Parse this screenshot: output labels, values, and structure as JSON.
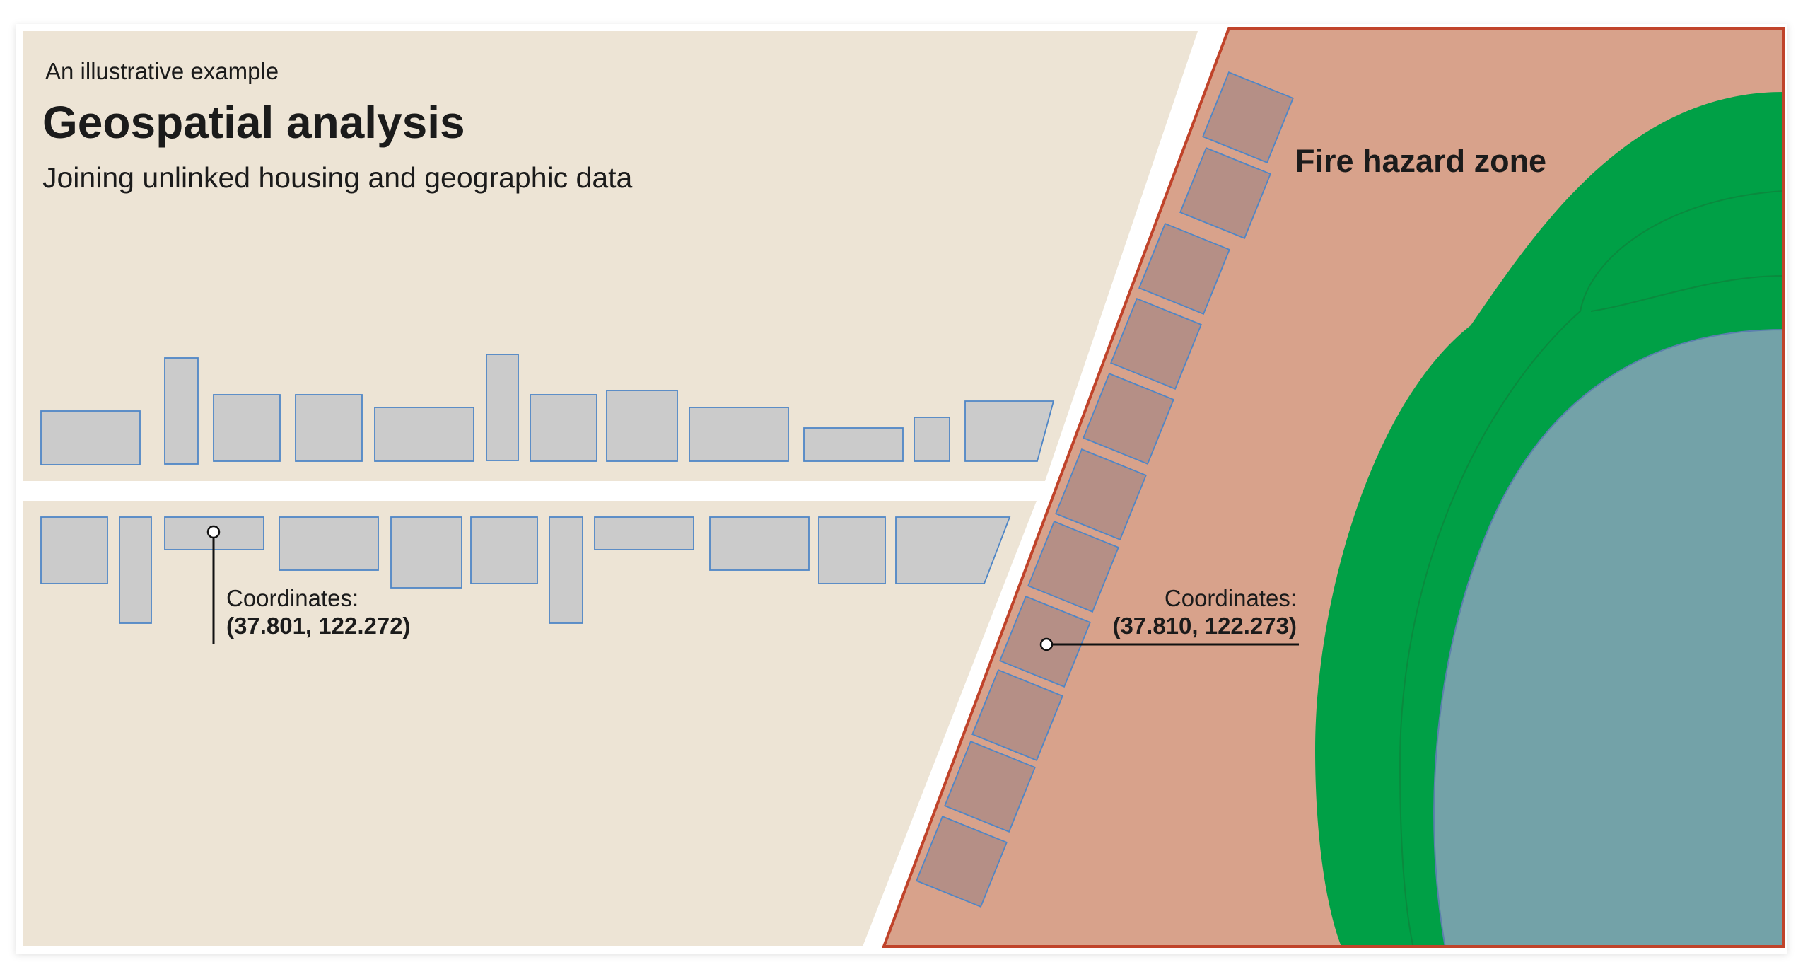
{
  "header": {
    "eyebrow": "An illustrative example",
    "title": "Geospatial analysis",
    "subtitle": "Joining unlinked housing and geographic data"
  },
  "left_panel": {
    "callout": {
      "label": "Coordinates:",
      "value": "(37.801, 122.272)"
    }
  },
  "right_panel": {
    "zone_label": "Fire hazard zone",
    "callout": {
      "label": "Coordinates:",
      "value": "(37.810, 122.273)"
    }
  },
  "colors": {
    "beige_panel": "#ede4d5",
    "fire_zone_fill": "#d8a28b",
    "fire_zone_border": "#c0432a",
    "vegetation": "#00a046",
    "water": "#73a2a8",
    "building_fill": "#cbcbcb",
    "building_fire_fill": "#b58f86",
    "building_outline": "#4f86c6"
  }
}
